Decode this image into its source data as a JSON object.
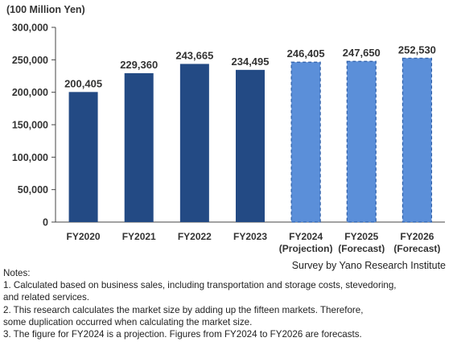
{
  "chart_data": {
    "type": "bar",
    "unit_label": "(100 Million Yen)",
    "categories": [
      "FY2020",
      "FY2021",
      "FY2022",
      "FY2023",
      "FY2024",
      "FY2025",
      "FY2026"
    ],
    "category_sublabels": [
      "",
      "",
      "",
      "",
      "(Projection)",
      "(Forecast)",
      "(Forecast)"
    ],
    "values": [
      200405,
      229360,
      243665,
      234495,
      246405,
      247650,
      252530
    ],
    "value_labels": [
      "200,405",
      "229,360",
      "243,665",
      "234,495",
      "246,405",
      "247,650",
      "252,530"
    ],
    "bar_kinds": [
      "actual",
      "actual",
      "actual",
      "actual",
      "projection",
      "forecast",
      "forecast"
    ],
    "ylim": [
      0,
      300000
    ],
    "yticks": [
      0,
      50000,
      100000,
      150000,
      200000,
      250000,
      300000
    ],
    "ytick_labels": [
      "0",
      "50,000",
      "100,000",
      "150,000",
      "200,000",
      "250,000",
      "300,000"
    ],
    "grid": false,
    "colors": {
      "actual": "#234a84",
      "projected": "#5b8fd9",
      "projected_border": "#2e5fa8",
      "axis": "#444444",
      "value_label": "#333333",
      "tick_label": "#333333"
    }
  },
  "source": "Survey by Yano Research Institute",
  "notes": {
    "heading": "Notes:",
    "lines": [
      "1.  Calculated based on business sales, including transportation and storage costs, stevedoring,",
      "and related services.",
      "2.  This research calculates the market size by adding up the fifteen markets. Therefore,",
      "some duplication occurred when calculating the market size.",
      "3. The figure for FY2024 is a projection. Figures from FY2024 to FY2026 are forecasts."
    ]
  }
}
